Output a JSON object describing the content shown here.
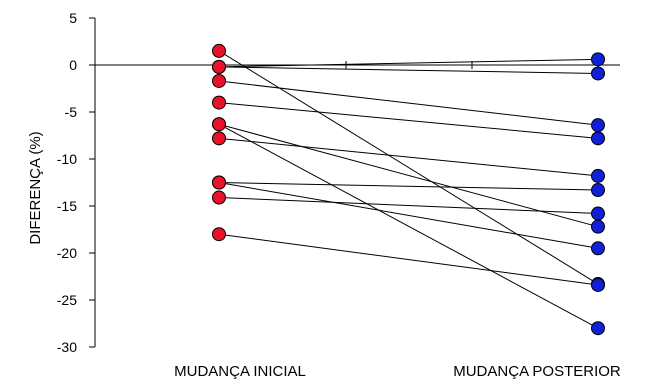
{
  "chart_data": {
    "type": "line",
    "categories": [
      "MUDANÇA INICIAL",
      "MUDANÇA POSTERIOR"
    ],
    "ylabel": "DIFERENÇA (%)",
    "ylim": [
      -30,
      5
    ],
    "yticks": [
      5,
      0,
      -5,
      -10,
      -15,
      -20,
      -25,
      -30
    ],
    "reference_line": 0,
    "grid": false,
    "colors": {
      "initial": "#e8132b",
      "posterior": "#1020d8",
      "line": "#000000"
    },
    "pairs": [
      {
        "initial": 1.5,
        "posterior": -23.3
      },
      {
        "initial": -0.2,
        "posterior": 0.6
      },
      {
        "initial": -0.2,
        "posterior": -0.9
      },
      {
        "initial": -1.7,
        "posterior": -6.4
      },
      {
        "initial": -4.0,
        "posterior": -7.8
      },
      {
        "initial": -6.3,
        "posterior": -17.2
      },
      {
        "initial": -6.3,
        "posterior": -28.0
      },
      {
        "initial": -7.8,
        "posterior": -11.8
      },
      {
        "initial": -12.5,
        "posterior": -13.3
      },
      {
        "initial": -12.5,
        "posterior": -19.5
      },
      {
        "initial": -14.1,
        "posterior": -15.8
      },
      {
        "initial": -18.0,
        "posterior": -23.4
      }
    ]
  }
}
